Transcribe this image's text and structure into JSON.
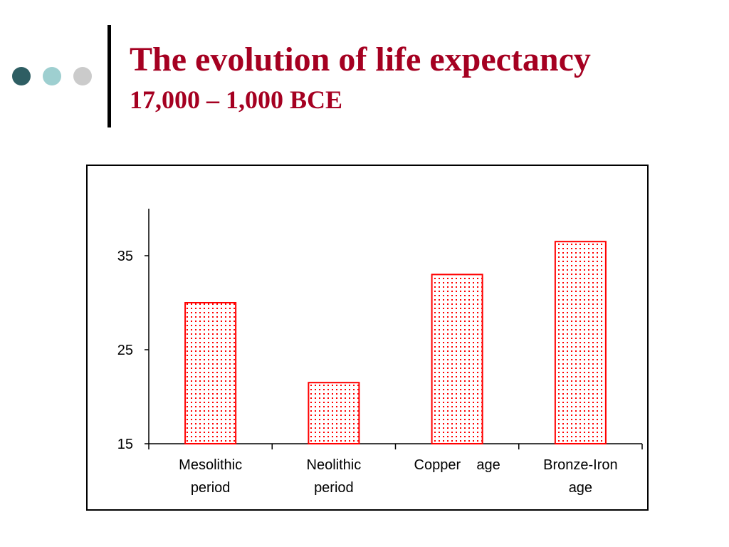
{
  "slide": {
    "title": "The evolution of life expectancy",
    "subtitle": "17,000 – 1,000 BCE",
    "title_color": "#A50021",
    "bullet_colors": [
      "#2E5E63",
      "#9ECFD0",
      "#CBCBCB"
    ]
  },
  "chart_data": {
    "type": "bar",
    "categories": [
      [
        "Mesolithic",
        "period"
      ],
      [
        "Neolithic",
        "period"
      ],
      [
        "Copper    age"
      ],
      [
        "Bronze-Iron",
        "age"
      ]
    ],
    "values": [
      30,
      21.5,
      33,
      36.5
    ],
    "yticks": [
      15,
      25,
      35
    ],
    "ylim": [
      15,
      40
    ],
    "bar_color": "#FF0000",
    "bar_fill": "dotted",
    "grid": false,
    "legend": "none"
  }
}
